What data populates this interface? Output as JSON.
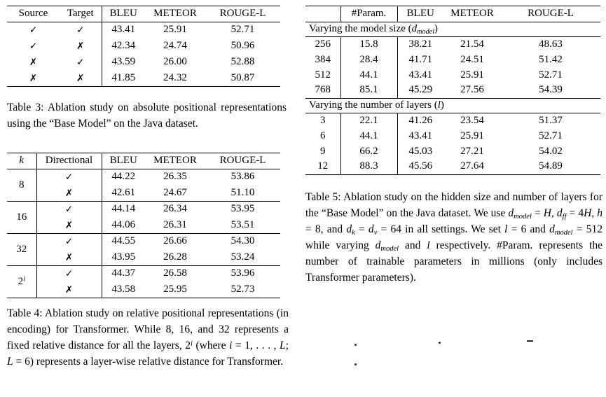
{
  "colors": {
    "background": "#ffffff",
    "text": "#000000",
    "rules": "#000000"
  },
  "marks": {
    "check": "✓",
    "cross": "✗"
  },
  "table3": {
    "headers": [
      "Source",
      "Target",
      "BLEU",
      "METEOR",
      "ROUGE-L"
    ],
    "rows": [
      [
        "✓",
        "✓",
        "43.41",
        "25.91",
        "52.71"
      ],
      [
        "✓",
        "✗",
        "42.34",
        "24.74",
        "50.96"
      ],
      [
        "✗",
        "✓",
        "43.59",
        "26.00",
        "52.88"
      ],
      [
        "✗",
        "✗",
        "41.85",
        "24.32",
        "50.87"
      ]
    ],
    "caption": "Table 3: Ablation study on absolute positional representations using the “Base Model” on the Java dataset."
  },
  "table4": {
    "headers": [
      "k",
      "Directional",
      "BLEU",
      "METEOR",
      "ROUGE-L"
    ],
    "groups": [
      {
        "k": "8",
        "rows": [
          [
            "✓",
            "44.22",
            "26.35",
            "53.86"
          ],
          [
            "✗",
            "42.61",
            "24.67",
            "51.10"
          ]
        ]
      },
      {
        "k": "16",
        "rows": [
          [
            "✓",
            "44.14",
            "26.34",
            "53.95"
          ],
          [
            "✗",
            "44.06",
            "26.31",
            "53.51"
          ]
        ]
      },
      {
        "k": "32",
        "rows": [
          [
            "✓",
            "44.55",
            "26.66",
            "54.30"
          ],
          [
            "✗",
            "43.95",
            "26.28",
            "53.24"
          ]
        ]
      },
      {
        "k_html": "2<sup><i>i</i></sup>",
        "rows": [
          [
            "✓",
            "44.37",
            "26.58",
            "53.96"
          ],
          [
            "✗",
            "43.58",
            "25.95",
            "52.73"
          ]
        ]
      }
    ],
    "caption_html": "Table 4: Ablation study on relative positional representations (in encoding) for Transformer. While 8, 16, and 32 represents a fixed relative distance for all the layers, 2<sup><i>i</i></sup> (where <i>i</i> = 1, . . . , <i>L</i>; <i>L</i> = 6) represents a layer-wise relative distance for Transformer."
  },
  "table5": {
    "headers": [
      "",
      "#Param.",
      "BLEU",
      "METEOR",
      "ROUGE-L"
    ],
    "sections": [
      {
        "title_html": "Varying the model size (<i>d</i><sub><i>model</i></sub>)",
        "rows": [
          [
            "256",
            "15.8",
            "38.21",
            "21.54",
            "48.63"
          ],
          [
            "384",
            "28.4",
            "41.71",
            "24.51",
            "51.42"
          ],
          [
            "512",
            "44.1",
            "43.41",
            "25.91",
            "52.71"
          ],
          [
            "768",
            "85.1",
            "45.29",
            "27.56",
            "54.39"
          ]
        ]
      },
      {
        "title_html": "Varying the number of layers (<i>l</i>)",
        "rows": [
          [
            "3",
            "22.1",
            "41.26",
            "23.54",
            "51.37"
          ],
          [
            "6",
            "44.1",
            "43.41",
            "25.91",
            "52.71"
          ],
          [
            "9",
            "66.2",
            "45.03",
            "27.21",
            "54.02"
          ],
          [
            "12",
            "88.3",
            "45.56",
            "27.64",
            "54.89"
          ]
        ]
      }
    ],
    "caption_html": "Table 5: Ablation study on the hidden size and number of layers for the “Base Model” on the Java dataset. We use <i>d</i><sub><i>model</i></sub> = <i>H</i>, <i>d</i><sub><i>ff</i></sub> = 4<i>H</i>, <i>h</i> = 8, and <i>d</i><sub><i>k</i></sub> = <i>d</i><sub><i>v</i></sub> = 64 in all settings. We set <i>l</i> = 6 and <i>d</i><sub><i>model</i></sub> = 512 while varying <i>d</i><sub><i>model</i></sub> and <i>l</i> respectively. #Param. represents the number of trainable parameters in millions (only includes Transformer parameters)."
  }
}
